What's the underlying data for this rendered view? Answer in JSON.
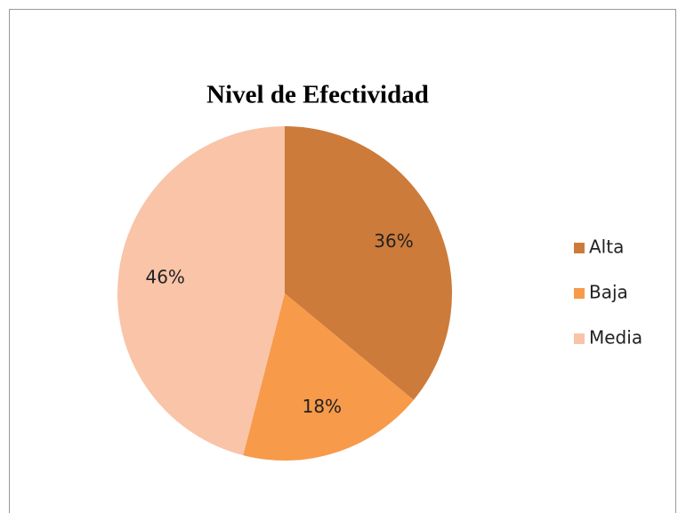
{
  "chart_data": {
    "type": "pie",
    "title": "Nivel de Efectividad",
    "categories": [
      "Alta",
      "Baja",
      "Media"
    ],
    "values": [
      36,
      18,
      46
    ],
    "value_labels": [
      "36%",
      "18%",
      "46%"
    ],
    "colors": [
      "#cd7b3a",
      "#f79a4a",
      "#f9c4a8"
    ],
    "legend": "right"
  }
}
